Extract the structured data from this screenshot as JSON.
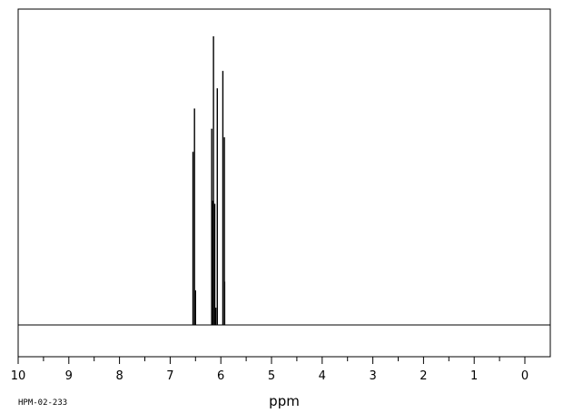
{
  "chart_data": {
    "type": "line",
    "title": "",
    "xlabel": "ppm",
    "ylabel": "",
    "xlim": [
      10,
      0
    ],
    "x_reversed": true,
    "ylim": [
      0,
      1
    ],
    "grid": false,
    "x_ticks": [
      "10",
      "9",
      "8",
      "7",
      "6",
      "5",
      "4",
      "3",
      "2",
      "1",
      "0"
    ],
    "x_tick_values": [
      10,
      9,
      8,
      7,
      6,
      5,
      4,
      3,
      2,
      1,
      0
    ],
    "x_minor_step": 0.5,
    "annotation": "HPM-02-233",
    "series": [
      {
        "peaks": [
          {
            "ppm": 6.55,
            "intensity": 0.6
          },
          {
            "ppm": 6.52,
            "intensity": 0.75
          },
          {
            "ppm": 6.5,
            "intensity": 0.12
          },
          {
            "ppm": 6.18,
            "intensity": 0.68
          },
          {
            "ppm": 6.16,
            "intensity": 0.43
          },
          {
            "ppm": 6.145,
            "intensity": 1.0
          },
          {
            "ppm": 6.12,
            "intensity": 0.42
          },
          {
            "ppm": 6.1,
            "intensity": 0.06
          },
          {
            "ppm": 6.07,
            "intensity": 0.82
          },
          {
            "ppm": 5.96,
            "intensity": 0.88
          },
          {
            "ppm": 5.93,
            "intensity": 0.65
          },
          {
            "ppm": 5.925,
            "intensity": 0.15
          }
        ]
      }
    ]
  }
}
